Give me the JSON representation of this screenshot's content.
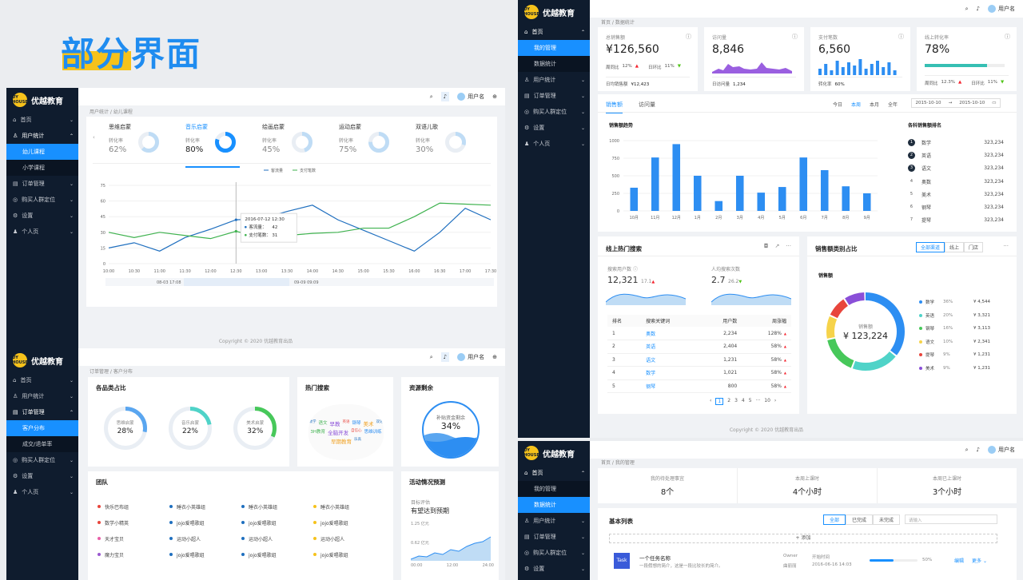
{
  "hero_title": "部分界面",
  "brand": {
    "mark": "UY HOUSE",
    "name": "优越教育"
  },
  "user": "用户名",
  "colors": {
    "primary": "#1890ff",
    "sidebar": "#0f1c2e",
    "green": "#3fb24f",
    "blue": "#1f6fbf"
  },
  "p1": {
    "menu": [
      {
        "icon": "home-icon",
        "label": "首页"
      },
      {
        "icon": "user-icon",
        "label": "用户统计",
        "open": true
      },
      {
        "label": "幼儿课程",
        "sub": true,
        "active": true
      },
      {
        "label": "小学课程",
        "sub": true
      },
      {
        "icon": "order-icon",
        "label": "订单管理"
      },
      {
        "icon": "target-icon",
        "label": "购买人群定位"
      },
      {
        "icon": "gear-icon",
        "label": "设置"
      },
      {
        "icon": "person-icon",
        "label": "个人页"
      }
    ],
    "crumb": [
      "用户统计",
      "幼儿课程"
    ],
    "tabs": [
      {
        "name": "思维启蒙",
        "sub": "转化率",
        "val": "62%",
        "pct": 62
      },
      {
        "name": "音乐启蒙",
        "sub": "转化率",
        "val": "80%",
        "pct": 80,
        "active": true
      },
      {
        "name": "绘画启蒙",
        "sub": "转化率",
        "val": "45%",
        "pct": 45
      },
      {
        "name": "运动启蒙",
        "sub": "转化率",
        "val": "75%",
        "pct": 75
      },
      {
        "name": "双语儿歌",
        "sub": "转化率",
        "val": "30%",
        "pct": 30
      }
    ],
    "legend": [
      "客流量",
      "支付笔数"
    ],
    "tooltip": {
      "time": "2016-07-12 12:30",
      "a": "客流量：",
      "av": "42",
      "b": "支付笔数：",
      "bv": "31"
    },
    "slider": [
      "08-03 17:08",
      "09-09 09:09"
    ],
    "footer": "Copyright © 2020 优越教育出品"
  },
  "chart_data": {
    "type": "line",
    "x": [
      "10:00",
      "10:30",
      "11:00",
      "11:30",
      "12:00",
      "12:30",
      "13:00",
      "13:30",
      "14:00",
      "14:30",
      "15:00",
      "15:30",
      "16:00",
      "16:30",
      "17:00",
      "17:30"
    ],
    "ylim": [
      0,
      75
    ],
    "yticks": [
      0,
      15,
      30,
      45,
      60,
      75
    ],
    "series": [
      {
        "name": "客流量",
        "color": "#1f6fbf",
        "values": [
          15,
          20,
          12,
          25,
          33,
          42,
          43,
          50,
          56,
          42,
          32,
          22,
          12,
          30,
          53,
          42
        ]
      },
      {
        "name": "支付笔数",
        "color": "#3fb24f",
        "values": [
          30,
          25,
          30,
          27,
          24,
          31,
          25,
          27,
          29,
          30,
          34,
          34,
          45,
          58,
          57,
          56
        ]
      }
    ]
  },
  "p2": {
    "menu": [
      {
        "icon": "home-icon",
        "label": "首页"
      },
      {
        "icon": "user-icon",
        "label": "用户统计"
      },
      {
        "icon": "order-icon",
        "label": "订单管理",
        "open": true
      },
      {
        "label": "客户分布",
        "sub": true,
        "active": true
      },
      {
        "label": "成交/退单率",
        "sub": true
      },
      {
        "icon": "target-icon",
        "label": "购买人群定位"
      },
      {
        "icon": "gear-icon",
        "label": "设置"
      },
      {
        "icon": "person-icon",
        "label": "个人页"
      }
    ],
    "crumb": [
      "订单管理",
      "客户分布"
    ],
    "cat": {
      "title": "各品类占比",
      "items": [
        {
          "name": "思维启蒙",
          "val": "28%",
          "pct": 28,
          "color": "#5aa6f0"
        },
        {
          "name": "音乐启蒙",
          "val": "22%",
          "pct": 22,
          "color": "#4fd3c8"
        },
        {
          "name": "美术启蒙",
          "val": "32%",
          "pct": 32,
          "color": "#47c85a"
        }
      ]
    },
    "hot": {
      "title": "热门搜索",
      "words": [
        "数学",
        "语文",
        "早教",
        "英语",
        "钢琴",
        "美术",
        "双语",
        "3H教育",
        "全脑开发",
        "自信心",
        "思维训练",
        "早期教育",
        "乐高"
      ]
    },
    "res": {
      "title": "资源剩余",
      "label": "补贴资金剩余",
      "val": "34%"
    },
    "team": {
      "title": "团队",
      "rows": [
        [
          {
            "c": "#e8453c",
            "t": "快乐巴布组"
          },
          {
            "c": "#1f6fbf",
            "t": "睡衣小英雄组"
          },
          {
            "c": "#1f6fbf",
            "t": "睡衣小英雄组"
          },
          {
            "c": "#f6c21b",
            "t": "睡衣小英雄组"
          }
        ],
        [
          {
            "c": "#e8453c",
            "t": "数学小精英"
          },
          {
            "c": "#1f6fbf",
            "t": "jojo爱唱歌组"
          },
          {
            "c": "#1f6fbf",
            "t": "jojo爱唱歌组"
          },
          {
            "c": "#f6c21b",
            "t": "jojo爱唱歌组"
          }
        ],
        [
          {
            "c": "#e85fa8",
            "t": "天才宝贝"
          },
          {
            "c": "#1f6fbf",
            "t": "运动小超人"
          },
          {
            "c": "#1f6fbf",
            "t": "运动小超人"
          },
          {
            "c": "#f6c21b",
            "t": "运动小超人"
          }
        ],
        [
          {
            "c": "#9b59d0",
            "t": "魔力宝贝"
          },
          {
            "c": "#1f6fbf",
            "t": "jojo爱唱歌组"
          },
          {
            "c": "#1f6fbf",
            "t": "jojo爱唱歌组"
          },
          {
            "c": "#f6c21b",
            "t": "jojo爱唱歌组"
          }
        ]
      ]
    },
    "act": {
      "title": "活动情况预测",
      "label": "目标评估",
      "big": "有望达到预期",
      "y1": "1.25 亿元",
      "y2": "0.62 亿元",
      "x": [
        "00:00",
        "12:00",
        "24:00"
      ]
    }
  },
  "p3": {
    "menu": [
      {
        "icon": "home-icon",
        "label": "首页",
        "open": true
      },
      {
        "label": "我的管理",
        "sub": true,
        "active": true
      },
      {
        "label": "数据统计",
        "sub": true
      },
      {
        "icon": "user-icon",
        "label": "用户统计"
      },
      {
        "icon": "order-icon",
        "label": "订单管理"
      },
      {
        "icon": "target-icon",
        "label": "购买人群定位"
      },
      {
        "icon": "gear-icon",
        "label": "设置"
      },
      {
        "icon": "person-icon",
        "label": "个人页"
      }
    ],
    "crumb": [
      "首页",
      "数据统计"
    ],
    "kpi": [
      {
        "t": "总销售额",
        "v": "¥126,560",
        "a": "周同比",
        "av": "12%",
        "b": "日环比",
        "bv": "11%",
        "f": "日均销售额",
        "fv": "¥12,423"
      },
      {
        "t": "访问量",
        "v": "8,846",
        "f": "日访问量",
        "fv": "1,234"
      },
      {
        "t": "支付笔数",
        "v": "6,560",
        "f": "转化率",
        "fv": "60%"
      },
      {
        "t": "线上转化率",
        "v": "78%",
        "a": "周同比",
        "av": "12.3%",
        "b": "日环比",
        "bv": "11%"
      }
    ],
    "sales": {
      "tabs": [
        "销售额",
        "访问量"
      ],
      "periods": [
        "今日",
        "本周",
        "本月",
        "全年"
      ],
      "d1": "2015-10-10",
      "d2": "2015-10-10",
      "title": "销售额趋势",
      "rank_title": "各科销售额排名",
      "rank": [
        {
          "n": "1",
          "t": "数学",
          "v": "323,234"
        },
        {
          "n": "2",
          "t": "英语",
          "v": "323,234"
        },
        {
          "n": "3",
          "t": "语文",
          "v": "323,234"
        },
        {
          "n": "4",
          "t": "奥数",
          "v": "323,234"
        },
        {
          "n": "5",
          "t": "美术",
          "v": "323,234"
        },
        {
          "n": "6",
          "t": "钢琴",
          "v": "323,234"
        },
        {
          "n": "7",
          "t": "提琴",
          "v": "323,234"
        }
      ]
    },
    "bars": {
      "cats": [
        "10月",
        "11月",
        "12月",
        "1月",
        "2月",
        "3月",
        "4月",
        "5月",
        "6月",
        "7月",
        "8月",
        "9月"
      ],
      "values": [
        330,
        760,
        950,
        500,
        140,
        500,
        260,
        340,
        760,
        580,
        350,
        250
      ],
      "ymax": 1000,
      "yticks": [
        0,
        250,
        500,
        750,
        1000
      ]
    },
    "search": {
      "title": "线上热门搜索",
      "u": "搜索用户数",
      "uv": "12,321",
      "ur": "17.1",
      "p": "人均搜索次数",
      "pv": "2.7",
      "pr": "26.2",
      "cols": [
        "排名",
        "搜索关键词",
        "用户数",
        "周涨幅"
      ],
      "rows": [
        [
          "1",
          "奥数",
          "2,234",
          "128%"
        ],
        [
          "2",
          "英语",
          "2,404",
          "58%"
        ],
        [
          "3",
          "语文",
          "1,231",
          "58%"
        ],
        [
          "4",
          "数学",
          "1,021",
          "58%"
        ],
        [
          "5",
          "钢琴",
          "800",
          "58%"
        ]
      ],
      "pages": [
        "1",
        "2",
        "3",
        "4",
        "5",
        "···",
        "10"
      ]
    },
    "pie": {
      "title": "销售额类别占比",
      "tabs": [
        "全部渠道",
        "线上",
        "门店"
      ],
      "sub": "销售额",
      "center": "销售额",
      "val": "¥ 123,224",
      "items": [
        {
          "c": "#2d8ef2",
          "t": "数学",
          "p": "36%",
          "v": "¥ 4,544"
        },
        {
          "c": "#4fd3c8",
          "t": "英语",
          "p": "20%",
          "v": "¥ 3,321"
        },
        {
          "c": "#47c85a",
          "t": "钢琴",
          "p": "16%",
          "v": "¥ 3,113"
        },
        {
          "c": "#f6d34a",
          "t": "语文",
          "p": "10%",
          "v": "¥ 2,341"
        },
        {
          "c": "#e8453c",
          "t": "提琴",
          "p": "9%",
          "v": "¥ 1,231"
        },
        {
          "c": "#8a4fd8",
          "t": "美术",
          "p": "9%",
          "v": "¥ 1,231"
        }
      ]
    },
    "footer": "Copyright © 2020 优越教育出品"
  },
  "p4": {
    "menu": [
      {
        "icon": "home-icon",
        "label": "首页",
        "open": true
      },
      {
        "label": "我的管理",
        "sub": true
      },
      {
        "label": "数据统计",
        "sub": true,
        "active": true
      },
      {
        "icon": "user-icon",
        "label": "用户统计"
      },
      {
        "icon": "order-icon",
        "label": "订单管理"
      },
      {
        "icon": "target-icon",
        "label": "购买人群定位"
      },
      {
        "icon": "gear-icon",
        "label": "设置"
      }
    ],
    "crumb": [
      "首页",
      "我的管理"
    ],
    "stats": [
      {
        "t": "我的待处理事宜",
        "v": "8个"
      },
      {
        "t": "本周上课时",
        "v": "4个小时"
      },
      {
        "t": "本周已上课时",
        "v": "3个小时"
      }
    ],
    "list": {
      "title": "基本列表",
      "tabs": [
        "全部",
        "已完成",
        "未完成"
      ],
      "search": "请输入",
      "add": "+ 添加",
      "task": {
        "icon": "Task",
        "name": "一个任务名称",
        "desc": "一段假想的简介，这是一段比较长的简介。",
        "owner_l": "Owner",
        "owner": "曲丽丽",
        "time_l": "开始时间",
        "time": "2016-06-16  14:03",
        "pct": "50%",
        "edit": "编辑",
        "more": "更多"
      }
    }
  }
}
